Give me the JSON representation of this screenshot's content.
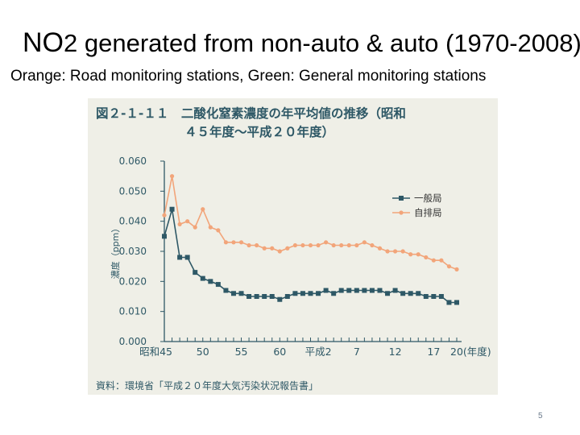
{
  "slide": {
    "title_main": "NO",
    "title_sub": "2",
    "title_rest": " generated from non-auto & auto  (1970-2008)",
    "subtitle": "Orange: Road monitoring stations, Green: General monitoring stations",
    "page_number": "5"
  },
  "colors": {
    "general": "#2e5866",
    "roadside": "#f2a57a",
    "panel_bg": "#efefe7",
    "axis": "#2e5866"
  },
  "chart_data": {
    "type": "line",
    "title_line1": "図２-１-１１　二酸化窒素濃度の年平均値の推移（昭和",
    "title_line2": "４５年度～平成２０年度）",
    "ylabel": "濃度（ppm）",
    "ylim": [
      0,
      0.06
    ],
    "y_ticks": [
      "0.060",
      "0.050",
      "0.040",
      "0.030",
      "0.020",
      "0.010",
      "0.000"
    ],
    "y_tick_values": [
      0.06,
      0.05,
      0.04,
      0.03,
      0.02,
      0.01,
      0.0
    ],
    "x": [
      1970,
      1971,
      1972,
      1973,
      1974,
      1975,
      1976,
      1977,
      1978,
      1979,
      1980,
      1981,
      1982,
      1983,
      1984,
      1985,
      1986,
      1987,
      1988,
      1989,
      1990,
      1991,
      1992,
      1993,
      1994,
      1995,
      1996,
      1997,
      1998,
      1999,
      2000,
      2001,
      2002,
      2003,
      2004,
      2005,
      2006,
      2007,
      2008
    ],
    "x_ticks": [
      {
        "label": "昭和45",
        "year": 1970
      },
      {
        "label": "50",
        "year": 1975
      },
      {
        "label": "55",
        "year": 1980
      },
      {
        "label": "60",
        "year": 1985
      },
      {
        "label": "平成2",
        "year": 1990
      },
      {
        "label": "7",
        "year": 1995
      },
      {
        "label": "12",
        "year": 2000
      },
      {
        "label": "17",
        "year": 2005
      },
      {
        "label": "20(年度)",
        "year": 2008
      }
    ],
    "series": [
      {
        "name": "一般局",
        "color": "#2e5866",
        "marker": "square",
        "values": [
          0.035,
          0.044,
          0.028,
          0.028,
          0.023,
          0.021,
          0.02,
          0.019,
          0.017,
          0.016,
          0.016,
          0.015,
          0.015,
          0.015,
          0.015,
          0.014,
          0.015,
          0.016,
          0.016,
          0.016,
          0.016,
          0.017,
          0.016,
          0.017,
          0.017,
          0.017,
          0.017,
          0.017,
          0.017,
          0.016,
          0.017,
          0.016,
          0.016,
          0.016,
          0.015,
          0.015,
          0.015,
          0.013,
          0.013
        ]
      },
      {
        "name": "自排局",
        "color": "#f2a57a",
        "marker": "circle",
        "values": [
          0.042,
          0.055,
          0.039,
          0.04,
          0.038,
          0.044,
          0.038,
          0.037,
          0.033,
          0.033,
          0.033,
          0.032,
          0.032,
          0.031,
          0.031,
          0.03,
          0.031,
          0.032,
          0.032,
          0.032,
          0.032,
          0.033,
          0.032,
          0.032,
          0.032,
          0.032,
          0.033,
          0.032,
          0.031,
          0.03,
          0.03,
          0.03,
          0.029,
          0.029,
          0.028,
          0.027,
          0.027,
          0.025,
          0.024
        ]
      }
    ],
    "legend": [
      "一般局",
      "自排局"
    ],
    "legend_position": "top-right",
    "source_note": "資料：環境省「平成２０年度大気汚染状況報告書」"
  }
}
